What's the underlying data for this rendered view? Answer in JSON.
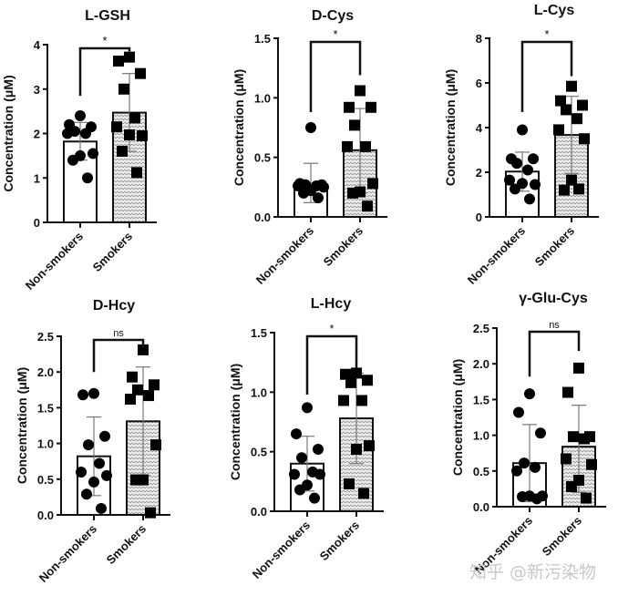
{
  "figure": {
    "watermark": "知乎 @新污染物"
  },
  "chart_data": [
    {
      "type": "bar",
      "title": "L-GSH",
      "ylabel": "Concentration (μM)",
      "categories": [
        "Non-smokers",
        "Smokers"
      ],
      "ylim": [
        0,
        4
      ],
      "yticks": [
        "0",
        "1",
        "2",
        "3",
        "4"
      ],
      "ytick_values": [
        0,
        1,
        2,
        3,
        4
      ],
      "significance": "*",
      "bracket_left_bottom": 2.85,
      "bracket_right_bottom": 3.85,
      "series": [
        {
          "name": "Non-smokers",
          "mean": 1.82,
          "sd_low": 1.4,
          "sd_high": 2.25,
          "points": [
            2.4,
            2.2,
            2.15,
            2.05,
            2.0,
            2.0,
            1.55,
            1.5,
            1.4,
            1.0
          ]
        },
        {
          "name": "Smokers",
          "mean": 2.47,
          "sd_low": 1.6,
          "sd_high": 3.35,
          "points": [
            3.72,
            3.63,
            3.35,
            3.0,
            2.35,
            2.15,
            1.95,
            1.97,
            1.6,
            1.12
          ]
        }
      ]
    },
    {
      "type": "bar",
      "title": "D-Cys",
      "ylabel": "Concentration (μM)",
      "categories": [
        "Non-smokers",
        "Smokers"
      ],
      "ylim": [
        0,
        1.5
      ],
      "yticks": [
        "0.0",
        "0.5",
        "1.0",
        "1.5"
      ],
      "ytick_values": [
        0,
        0.5,
        1.0,
        1.5
      ],
      "significance": "*",
      "bracket_left_bottom": 0.88,
      "bracket_right_bottom": 1.19,
      "series": [
        {
          "name": "Non-smokers",
          "mean": 0.27,
          "sd_low": 0.12,
          "sd_high": 0.45,
          "points": [
            0.75,
            0.28,
            0.27,
            0.27,
            0.26,
            0.26,
            0.25,
            0.22,
            0.2,
            0.16
          ]
        },
        {
          "name": "Smokers",
          "mean": 0.56,
          "sd_low": 0.2,
          "sd_high": 0.91,
          "points": [
            1.06,
            0.92,
            0.92,
            0.77,
            0.59,
            0.59,
            0.28,
            0.21,
            0.2,
            0.09
          ]
        }
      ]
    },
    {
      "type": "bar",
      "title": "L-Cys",
      "ylabel": "Concentration (μM)",
      "categories": [
        "Non-smokers",
        "Smokers"
      ],
      "ylim": [
        0,
        8
      ],
      "yticks": [
        "0",
        "2",
        "4",
        "6",
        "8"
      ],
      "ytick_values": [
        0,
        2,
        4,
        6,
        8
      ],
      "significance": "*",
      "bracket_left_bottom": 4.7,
      "bracket_right_bottom": 6.3,
      "series": [
        {
          "name": "Non-smokers",
          "mean": 2.03,
          "sd_low": 1.15,
          "sd_high": 2.9,
          "points": [
            3.9,
            2.6,
            2.6,
            2.4,
            2.1,
            1.65,
            1.45,
            1.5,
            1.25,
            0.8
          ]
        },
        {
          "name": "Smokers",
          "mean": 3.67,
          "sd_low": 1.95,
          "sd_high": 5.4,
          "points": [
            5.85,
            5.2,
            5.0,
            4.8,
            4.4,
            3.9,
            3.5,
            1.65,
            1.2,
            1.25
          ]
        }
      ]
    },
    {
      "type": "bar",
      "title": "D-Hcy",
      "ylabel": "Concentration (μM)",
      "categories": [
        "Non-smokers",
        "Smokers"
      ],
      "ylim": [
        0,
        2.5
      ],
      "yticks": [
        "0.0",
        "0.5",
        "1.0",
        "1.5",
        "2.0",
        "2.5"
      ],
      "ytick_values": [
        0,
        0.5,
        1.0,
        1.5,
        2.0,
        2.5
      ],
      "significance": "ns",
      "bracket_left_bottom": 2.0,
      "bracket_right_bottom": 2.33,
      "series": [
        {
          "name": "Non-smokers",
          "mean": 0.82,
          "sd_low": 0.27,
          "sd_high": 1.37,
          "points": [
            1.7,
            1.68,
            1.1,
            0.98,
            0.72,
            0.6,
            0.55,
            0.46,
            0.29,
            0.09
          ]
        },
        {
          "name": "Smokers",
          "mean": 1.31,
          "sd_low": 0.55,
          "sd_high": 2.07,
          "points": [
            2.31,
            1.93,
            1.82,
            1.75,
            1.67,
            1.62,
            0.98,
            0.49,
            0.49,
            0.03
          ]
        }
      ]
    },
    {
      "type": "bar",
      "title": "L-Hcy",
      "ylabel": "Concentration (μM)",
      "categories": [
        "Non-smokers",
        "Smokers"
      ],
      "ylim": [
        0,
        1.5
      ],
      "yticks": [
        "0.0",
        "0.5",
        "1.0",
        "1.5"
      ],
      "ytick_values": [
        0,
        0.5,
        1.0,
        1.5
      ],
      "significance": "*",
      "bracket_left_bottom": 0.98,
      "bracket_right_bottom": 1.2,
      "series": [
        {
          "name": "Non-smokers",
          "mean": 0.4,
          "sd_low": 0.17,
          "sd_high": 0.63,
          "points": [
            0.87,
            0.65,
            0.52,
            0.45,
            0.33,
            0.31,
            0.31,
            0.22,
            0.18,
            0.11
          ]
        },
        {
          "name": "Smokers",
          "mean": 0.78,
          "sd_low": 0.4,
          "sd_high": 1.16,
          "points": [
            1.16,
            1.15,
            1.1,
            1.08,
            0.93,
            0.93,
            0.55,
            0.52,
            0.23,
            0.15
          ]
        }
      ]
    },
    {
      "type": "bar",
      "title": "γ-Glu-Cys",
      "ylabel": "Concentration (μM)",
      "categories": [
        "Non-smokers",
        "Smokers"
      ],
      "ylim": [
        0,
        2.5
      ],
      "yticks": [
        "0.0",
        "0.5",
        "1.0",
        "1.5",
        "2.0",
        "2.5"
      ],
      "ytick_values": [
        0,
        0.5,
        1.0,
        1.5,
        2.0,
        2.5
      ],
      "significance": "ns",
      "bracket_left_bottom": 1.82,
      "bracket_right_bottom": 2.18,
      "series": [
        {
          "name": "Non-smokers",
          "mean": 0.61,
          "sd_low": 0.07,
          "sd_high": 1.15,
          "points": [
            1.58,
            1.32,
            1.03,
            0.61,
            0.55,
            0.5,
            0.15,
            0.15,
            0.14,
            0.11
          ]
        },
        {
          "name": "Smokers",
          "mean": 0.84,
          "sd_low": 0.2,
          "sd_high": 1.42,
          "points": [
            1.94,
            1.6,
            0.98,
            0.98,
            0.95,
            0.67,
            0.59,
            0.37,
            0.28,
            0.12
          ]
        }
      ]
    }
  ]
}
